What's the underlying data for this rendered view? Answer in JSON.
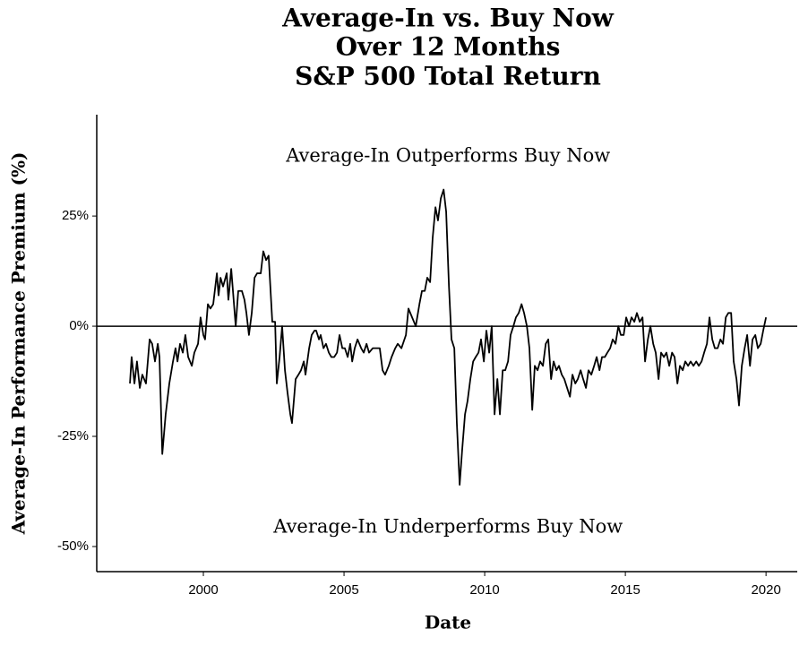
{
  "chart_data": {
    "type": "line",
    "title": [
      "Average-In vs. Buy Now",
      "Over 12 Months",
      "S&P 500 Total Return"
    ],
    "x_label": "Date",
    "y_label": "Average-In Performance Premium (%)",
    "annotations": [
      {
        "text": "Average-In Outperforms Buy Now",
        "x": 2008.7,
        "y": 38.4
      },
      {
        "text": "Average-In Underperforms Buy Now",
        "x": 2008.7,
        "y": -45.7
      }
    ],
    "hline": 0,
    "xlim": [
      1996.21,
      2021.11
    ],
    "ylim": [
      -55.7,
      48
    ],
    "xticks": [
      2000,
      2005,
      2010,
      2015,
      2020
    ],
    "yticks": [
      {
        "value": 25,
        "label": "25%"
      },
      {
        "value": 0,
        "label": "0%"
      },
      {
        "value": -25,
        "label": "-25%"
      },
      {
        "value": -50,
        "label": "-50%"
      }
    ],
    "series": [
      {
        "color": "#000000",
        "x": [
          1997.39,
          1997.45,
          1997.55,
          1997.64,
          1997.74,
          1997.83,
          1997.96,
          1998.09,
          1998.18,
          1998.28,
          1998.38,
          1998.44,
          1998.54,
          1998.66,
          1998.79,
          1998.92,
          1999.01,
          1999.08,
          1999.17,
          1999.27,
          1999.36,
          1999.46,
          1999.59,
          1999.68,
          1999.81,
          1999.9,
          2000.0,
          2000.06,
          2000.16,
          2000.25,
          2000.35,
          2000.48,
          2000.54,
          2000.61,
          2000.7,
          2000.83,
          2000.89,
          2000.99,
          2001.15,
          2001.24,
          2001.37,
          2001.46,
          2001.53,
          2001.62,
          2001.72,
          2001.82,
          2001.91,
          2002.04,
          2002.13,
          2002.23,
          2002.32,
          2002.45,
          2002.55,
          2002.61,
          2002.71,
          2002.8,
          2002.9,
          2002.99,
          2003.09,
          2003.15,
          2003.28,
          2003.38,
          2003.47,
          2003.57,
          2003.63,
          2003.76,
          2003.85,
          2003.95,
          2004.01,
          2004.11,
          2004.17,
          2004.27,
          2004.36,
          2004.46,
          2004.55,
          2004.65,
          2004.75,
          2004.84,
          2004.94,
          2005.03,
          2005.13,
          2005.22,
          2005.29,
          2005.38,
          2005.48,
          2005.61,
          2005.7,
          2005.8,
          2005.89,
          2006.02,
          2006.18,
          2006.27,
          2006.37,
          2006.46,
          2006.59,
          2006.69,
          2006.82,
          2006.91,
          2007.04,
          2007.2,
          2007.29,
          2007.42,
          2007.55,
          2007.68,
          2007.77,
          2007.87,
          2007.96,
          2008.06,
          2008.15,
          2008.25,
          2008.34,
          2008.44,
          2008.54,
          2008.63,
          2008.73,
          2008.82,
          2008.92,
          2009.01,
          2009.11,
          2009.2,
          2009.3,
          2009.39,
          2009.49,
          2009.59,
          2009.68,
          2009.78,
          2009.87,
          2009.97,
          2010.06,
          2010.16,
          2010.25,
          2010.35,
          2010.45,
          2010.54,
          2010.64,
          2010.73,
          2010.83,
          2010.92,
          2011.02,
          2011.11,
          2011.21,
          2011.31,
          2011.4,
          2011.5,
          2011.59,
          2011.69,
          2011.78,
          2011.88,
          2011.97,
          2012.07,
          2012.17,
          2012.26,
          2012.36,
          2012.45,
          2012.55,
          2012.64,
          2012.74,
          2012.83,
          2012.93,
          2013.03,
          2013.12,
          2013.22,
          2013.31,
          2013.41,
          2013.5,
          2013.6,
          2013.69,
          2013.79,
          2013.89,
          2013.98,
          2014.08,
          2014.17,
          2014.27,
          2014.36,
          2014.46,
          2014.55,
          2014.65,
          2014.75,
          2014.84,
          2014.94,
          2015.03,
          2015.13,
          2015.22,
          2015.32,
          2015.41,
          2015.51,
          2015.61,
          2015.7,
          2015.8,
          2015.89,
          2015.99,
          2016.08,
          2016.18,
          2016.27,
          2016.37,
          2016.46,
          2016.56,
          2016.66,
          2016.75,
          2016.85,
          2016.94,
          2017.04,
          2017.13,
          2017.23,
          2017.32,
          2017.42,
          2017.52,
          2017.61,
          2017.71,
          2017.8,
          2017.9,
          2017.99,
          2018.09,
          2018.18,
          2018.28,
          2018.38,
          2018.47,
          2018.57,
          2018.66,
          2018.76,
          2018.85,
          2018.95,
          2019.04,
          2019.14,
          2019.24,
          2019.33,
          2019.43,
          2019.52,
          2019.62,
          2019.71,
          2019.81,
          2019.9,
          2020.0
        ],
        "values": [
          -13,
          -7,
          -13,
          -8,
          -14,
          -11,
          -13,
          -3,
          -4,
          -8,
          -4,
          -7,
          -29,
          -20,
          -13,
          -8,
          -5,
          -8,
          -4,
          -6,
          -2,
          -7,
          -9,
          -6,
          -4,
          2,
          -2,
          -3,
          5,
          4,
          5,
          12,
          7,
          11,
          9,
          12,
          6,
          13,
          0,
          8,
          8,
          6,
          3,
          -2,
          3,
          11,
          12,
          12,
          17,
          15,
          16,
          1,
          1,
          -13,
          -7,
          0,
          -10,
          -15,
          -20,
          -22,
          -12,
          -11,
          -10,
          -8,
          -11,
          -5,
          -2,
          -1,
          -1,
          -3,
          -2,
          -5,
          -4,
          -6,
          -7,
          -7,
          -6,
          -2,
          -5,
          -5,
          -7,
          -4,
          -8,
          -5,
          -3,
          -5,
          -6,
          -4,
          -6,
          -5,
          -5,
          -5,
          -10,
          -11,
          -9,
          -7,
          -5,
          -4,
          -5,
          -2,
          4,
          2,
          0,
          5,
          8,
          8,
          11,
          10,
          20,
          27,
          24,
          29,
          31,
          26,
          9,
          -3,
          -5,
          -22,
          -36,
          -28,
          -20,
          -17,
          -12,
          -8,
          -7,
          -6,
          -3,
          -8,
          -1,
          -6,
          0,
          -20,
          -12,
          -20,
          -10,
          -10,
          -8,
          -2,
          0,
          2,
          3,
          5,
          3,
          0,
          -5,
          -19,
          -9,
          -10,
          -8,
          -9,
          -4,
          -3,
          -12,
          -8,
          -10,
          -9,
          -11,
          -12,
          -14,
          -16,
          -11,
          -13,
          -12,
          -10,
          -12,
          -14,
          -10,
          -11,
          -9,
          -7,
          -10,
          -7,
          -7,
          -6,
          -5,
          -3,
          -4,
          0,
          -2,
          -2,
          2,
          0,
          2,
          1,
          3,
          1,
          2,
          -8,
          -3,
          0,
          -4,
          -6,
          -12,
          -6,
          -7,
          -6,
          -9,
          -6,
          -7,
          -13,
          -9,
          -10,
          -8,
          -9,
          -8,
          -9,
          -8,
          -9,
          -8,
          -6,
          -4,
          2,
          -3,
          -5,
          -5,
          -3,
          -4,
          2,
          3,
          3,
          -8,
          -12,
          -18,
          -9,
          -5,
          -2,
          -9,
          -3,
          -2,
          -5,
          -4,
          -1,
          2
        ]
      }
    ]
  }
}
